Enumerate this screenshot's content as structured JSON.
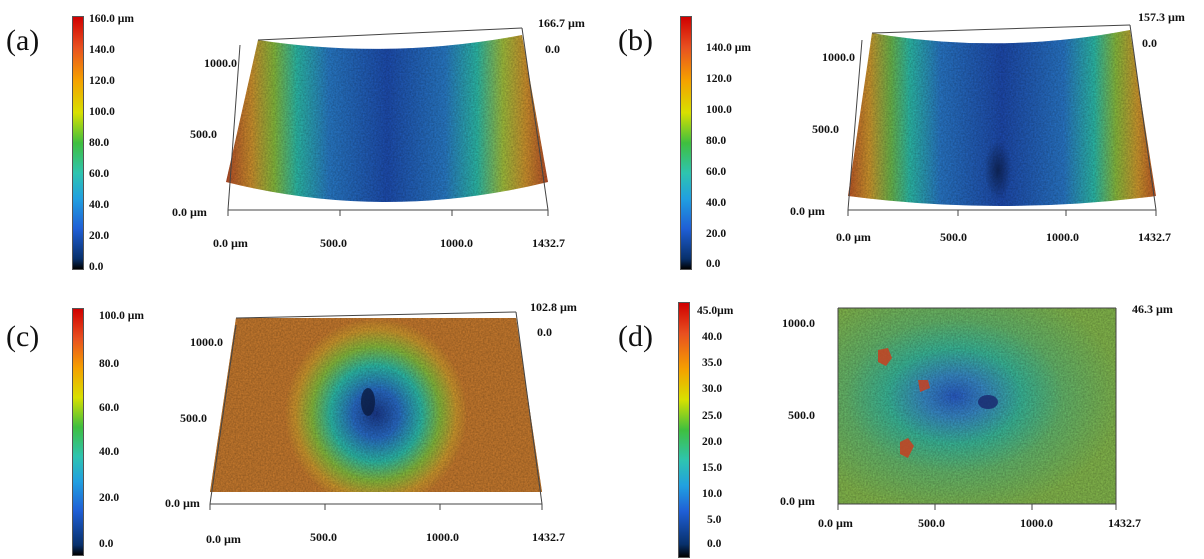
{
  "chart_data": [
    {
      "type": "heatmap",
      "panel_label": "(a)",
      "colorbar_ticks": [
        "160.0 µm",
        "140.0",
        "120.0",
        "100.0",
        "80.0",
        "60.0",
        "40.0",
        "20.0",
        "0.0"
      ],
      "zmax_label": "166.7 µm",
      "zmin_label": "0.0",
      "x_ticks": [
        "0.0 µm",
        "500.0",
        "1000.0",
        "1432.7"
      ],
      "y_ticks": [
        "1000.0",
        "500.0",
        "0.0 µm"
      ],
      "x_range": [
        0,
        1432.7
      ],
      "z_range": [
        0,
        166.7
      ]
    },
    {
      "type": "heatmap",
      "panel_label": "(b)",
      "colorbar_ticks": [
        "140.0 µm",
        "120.0",
        "100.0",
        "80.0",
        "60.0",
        "40.0",
        "20.0",
        "0.0"
      ],
      "zmax_label": "157.3 µm",
      "zmin_label": "0.0",
      "x_ticks": [
        "0.0 µm",
        "500.0",
        "1000.0",
        "1432.7"
      ],
      "y_ticks": [
        "1000.0",
        "500.0",
        "0.0 µm"
      ],
      "x_range": [
        0,
        1432.7
      ],
      "z_range": [
        0,
        157.3
      ]
    },
    {
      "type": "heatmap",
      "panel_label": "(c)",
      "colorbar_ticks": [
        "100.0 µm",
        "80.0",
        "60.0",
        "40.0",
        "20.0",
        "0.0"
      ],
      "zmax_label": "102.8 µm",
      "zmin_label": "0.0",
      "x_ticks": [
        "0.0 µm",
        "500.0",
        "1000.0",
        "1432.7"
      ],
      "y_ticks": [
        "1000.0",
        "500.0",
        "0.0 µm"
      ],
      "x_range": [
        0,
        1432.7
      ],
      "z_range": [
        0,
        102.8
      ]
    },
    {
      "type": "heatmap",
      "panel_label": "(d)",
      "colorbar_ticks": [
        "45.0µm",
        "40.0",
        "35.0",
        "30.0",
        "25.0",
        "20.0",
        "15.0",
        "10.0",
        "5.0",
        "0.0"
      ],
      "zmax_label": "46.3 µm",
      "x_ticks": [
        "0.0 µm",
        "500.0",
        "1000.0",
        "1432.7"
      ],
      "y_ticks": [
        "1000.0",
        "500.0",
        "0.0 µm"
      ],
      "x_range": [
        0,
        1432.7
      ],
      "z_range": [
        0,
        46.3
      ]
    }
  ],
  "colors": {
    "jet": [
      "#000000",
      "#08306b",
      "#1f5fd6",
      "#21a0e0",
      "#2ec4b0",
      "#3fbf3f",
      "#d8e000",
      "#f5a000",
      "#e85020",
      "#d00000"
    ]
  }
}
